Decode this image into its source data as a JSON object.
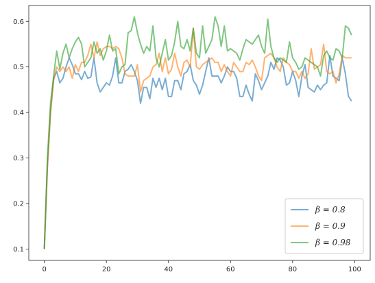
{
  "chart_data": {
    "type": "line",
    "title": "",
    "xlabel": "",
    "ylabel": "",
    "xlim": [
      -5,
      105
    ],
    "ylim": [
      0.075,
      0.635
    ],
    "xticks": [
      0,
      20,
      40,
      60,
      80,
      100
    ],
    "yticks": [
      0.1,
      0.2,
      0.3,
      0.4,
      0.5,
      0.6
    ],
    "xtick_labels": [
      "0",
      "20",
      "40",
      "60",
      "80",
      "100"
    ],
    "ytick_labels": [
      "0.1",
      "0.2",
      "0.3",
      "0.4",
      "0.5",
      "0.6"
    ],
    "grid": false,
    "legend_position": "lower-right",
    "x": [
      0,
      1,
      2,
      3,
      4,
      5,
      6,
      7,
      8,
      9,
      10,
      11,
      12,
      13,
      14,
      15,
      16,
      17,
      18,
      19,
      20,
      21,
      22,
      23,
      24,
      25,
      26,
      27,
      28,
      29,
      30,
      31,
      32,
      33,
      34,
      35,
      36,
      37,
      38,
      39,
      40,
      41,
      42,
      43,
      44,
      45,
      46,
      47,
      48,
      49,
      50,
      51,
      52,
      53,
      54,
      55,
      56,
      57,
      58,
      59,
      60,
      61,
      62,
      63,
      64,
      65,
      66,
      67,
      68,
      69,
      70,
      71,
      72,
      73,
      74,
      75,
      76,
      77,
      78,
      79,
      80,
      81,
      82,
      83,
      84,
      85,
      86,
      87,
      88,
      89,
      90,
      91,
      92,
      93,
      94,
      95,
      96,
      97,
      98,
      99
    ],
    "series": [
      {
        "name": "β = 0.8",
        "color": "#1f77b4",
        "values": [
          0.1,
          0.28,
          0.4,
          0.475,
          0.49,
          0.465,
          0.475,
          0.5,
          0.52,
          0.505,
          0.485,
          0.485,
          0.472,
          0.49,
          0.475,
          0.478,
          0.52,
          0.465,
          0.445,
          0.455,
          0.465,
          0.46,
          0.48,
          0.52,
          0.465,
          0.465,
          0.49,
          0.495,
          0.505,
          0.49,
          0.47,
          0.42,
          0.455,
          0.455,
          0.43,
          0.475,
          0.455,
          0.475,
          0.45,
          0.475,
          0.435,
          0.435,
          0.47,
          0.47,
          0.45,
          0.485,
          0.49,
          0.505,
          0.47,
          0.46,
          0.44,
          0.46,
          0.49,
          0.52,
          0.48,
          0.48,
          0.48,
          0.465,
          0.48,
          0.5,
          0.49,
          0.49,
          0.475,
          0.435,
          0.435,
          0.46,
          0.44,
          0.425,
          0.485,
          0.47,
          0.45,
          0.465,
          0.48,
          0.51,
          0.495,
          0.52,
          0.515,
          0.5,
          0.46,
          0.465,
          0.49,
          0.47,
          0.435,
          0.48,
          0.505,
          0.455,
          0.45,
          0.445,
          0.46,
          0.45,
          0.46,
          0.465,
          0.525,
          0.48,
          0.475,
          0.47,
          0.52,
          0.485,
          0.435,
          0.425
        ]
      },
      {
        "name": "β = 0.9",
        "color": "#ff7f0e",
        "values": [
          0.1,
          0.28,
          0.4,
          0.47,
          0.5,
          0.49,
          0.5,
          0.49,
          0.5,
          0.475,
          0.505,
          0.49,
          0.51,
          0.51,
          0.525,
          0.55,
          0.52,
          0.555,
          0.525,
          0.54,
          0.545,
          0.545,
          0.54,
          0.545,
          0.54,
          0.52,
          0.485,
          0.48,
          0.48,
          0.48,
          0.505,
          0.445,
          0.47,
          0.475,
          0.48,
          0.5,
          0.505,
          0.53,
          0.49,
          0.52,
          0.485,
          0.495,
          0.53,
          0.5,
          0.48,
          0.51,
          0.515,
          0.5,
          0.585,
          0.5,
          0.495,
          0.505,
          0.51,
          0.515,
          0.52,
          0.51,
          0.51,
          0.49,
          0.505,
          0.49,
          0.48,
          0.51,
          0.5,
          0.49,
          0.49,
          0.51,
          0.505,
          0.515,
          0.5,
          0.48,
          0.47,
          0.52,
          0.525,
          0.53,
          0.52,
          0.5,
          0.49,
          0.52,
          0.51,
          0.505,
          0.49,
          0.49,
          0.475,
          0.49,
          0.475,
          0.485,
          0.54,
          0.495,
          0.5,
          0.505,
          0.55,
          0.49,
          0.485,
          0.49,
          0.465,
          0.485,
          0.525,
          0.52,
          0.52,
          0.52
        ]
      },
      {
        "name": "β = 0.98",
        "color": "#2ca02c",
        "values": [
          0.1,
          0.3,
          0.42,
          0.48,
          0.535,
          0.495,
          0.53,
          0.55,
          0.52,
          0.54,
          0.555,
          0.565,
          0.55,
          0.5,
          0.51,
          0.52,
          0.555,
          0.53,
          0.54,
          0.515,
          0.535,
          0.57,
          0.535,
          0.54,
          0.485,
          0.5,
          0.505,
          0.575,
          0.58,
          0.61,
          0.575,
          0.55,
          0.53,
          0.545,
          0.535,
          0.59,
          0.52,
          0.5,
          0.53,
          0.56,
          0.515,
          0.525,
          0.555,
          0.6,
          0.545,
          0.54,
          0.56,
          0.535,
          0.585,
          0.53,
          0.52,
          0.59,
          0.53,
          0.545,
          0.56,
          0.61,
          0.59,
          0.545,
          0.59,
          0.535,
          0.54,
          0.535,
          0.53,
          0.515,
          0.54,
          0.56,
          0.555,
          0.55,
          0.56,
          0.57,
          0.545,
          0.53,
          0.605,
          0.545,
          0.52,
          0.51,
          0.52,
          0.515,
          0.51,
          0.555,
          0.52,
          0.51,
          0.495,
          0.5,
          0.52,
          0.515,
          0.51,
          0.505,
          0.5,
          0.48,
          0.525,
          0.535,
          0.52,
          0.515,
          0.54,
          0.535,
          0.52,
          0.59,
          0.585,
          0.57
        ]
      }
    ]
  }
}
